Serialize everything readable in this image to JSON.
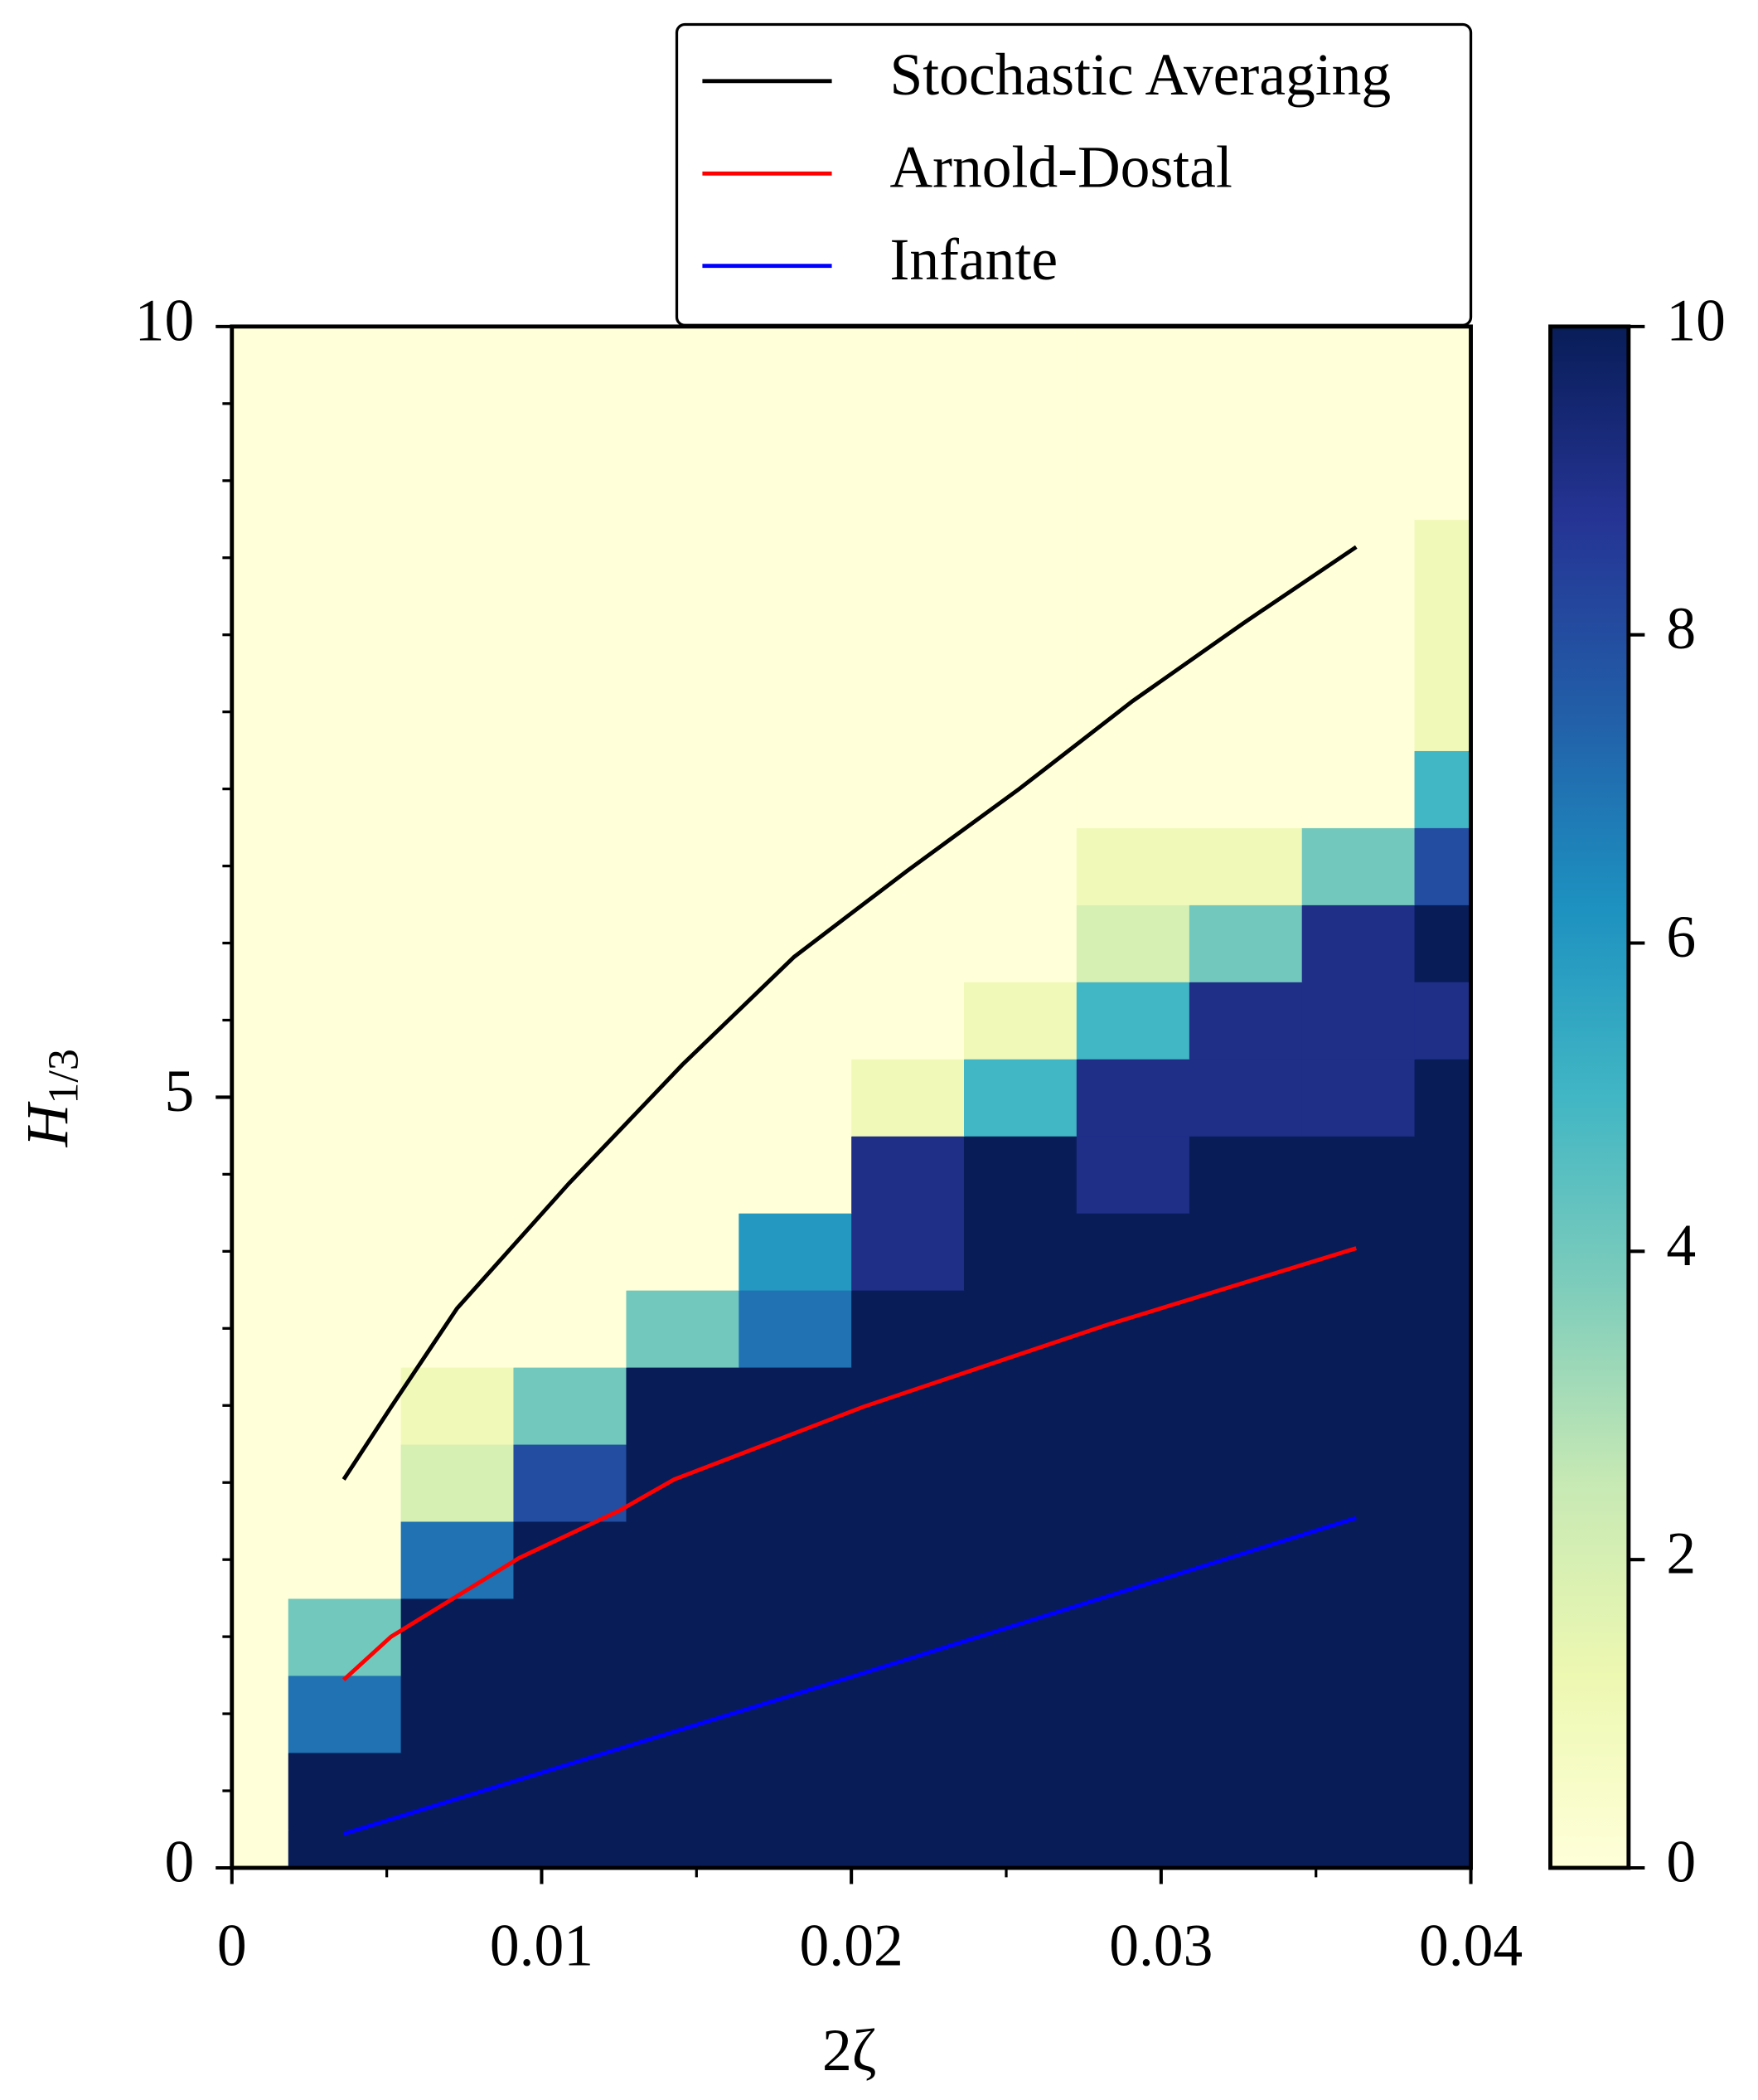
{
  "chart_data": {
    "type": "heatmap",
    "xlabel": "2ζ",
    "ylabel": "H",
    "ylabel_sub": "1/3",
    "xlim": [
      0,
      0.04
    ],
    "ylim": [
      0,
      10
    ],
    "xticks": [
      0,
      0.01,
      0.02,
      0.03,
      0.04
    ],
    "yticks": [
      0,
      5,
      10
    ],
    "xminorticks": [
      0.005,
      0.015,
      0.025,
      0.035
    ],
    "yminorticks": [
      0.5,
      1,
      1.5,
      2,
      2.5,
      3,
      3.5,
      4,
      4.5,
      5.5,
      6,
      6.5,
      7,
      7.5,
      8,
      8.5,
      9,
      9.5
    ],
    "xcenters": [
      0,
      0.00364,
      0.00727,
      0.01091,
      0.01455,
      0.01818,
      0.02182,
      0.02545,
      0.02909,
      0.03273,
      0.03636,
      0.04
    ],
    "ycenters": [
      0,
      0.5,
      1,
      1.5,
      2,
      2.5,
      3,
      3.5,
      4,
      4.5,
      5,
      5.5,
      6,
      6.5,
      7,
      7.5,
      8,
      8.5,
      9,
      9.5,
      10
    ],
    "z": [
      [
        0,
        10,
        10,
        10,
        10,
        10,
        10,
        10,
        10,
        10,
        10,
        10
      ],
      [
        0,
        10,
        10,
        10,
        10,
        10,
        10,
        10,
        10,
        10,
        10,
        10
      ],
      [
        0,
        7,
        10,
        10,
        10,
        10,
        10,
        10,
        10,
        10,
        10,
        10
      ],
      [
        0,
        4,
        10,
        10,
        10,
        10,
        10,
        10,
        10,
        10,
        10,
        10
      ],
      [
        0,
        0,
        7,
        10,
        10,
        10,
        10,
        10,
        10,
        10,
        10,
        10
      ],
      [
        0,
        0,
        2,
        8,
        10,
        10,
        10,
        10,
        10,
        10,
        10,
        10
      ],
      [
        0,
        0,
        1,
        4,
        10,
        10,
        10,
        10,
        10,
        10,
        10,
        10
      ],
      [
        0,
        0,
        0,
        0,
        4,
        7,
        10,
        10,
        10,
        10,
        10,
        10
      ],
      [
        0,
        0,
        0,
        0,
        0,
        6,
        9,
        10,
        10,
        10,
        10,
        10
      ],
      [
        0,
        0,
        0,
        0,
        0,
        0,
        9,
        10,
        9,
        10,
        10,
        10
      ],
      [
        0,
        0,
        0,
        0,
        0,
        0,
        1,
        5,
        9,
        9,
        9,
        10
      ],
      [
        0,
        0,
        0,
        0,
        0,
        0,
        0,
        1,
        5,
        9,
        9,
        9
      ],
      [
        0,
        0,
        0,
        0,
        0,
        0,
        0,
        0,
        2,
        4,
        9,
        10
      ],
      [
        0,
        0,
        0,
        0,
        0,
        0,
        0,
        0,
        1,
        1,
        4,
        8
      ],
      [
        0,
        0,
        0,
        0,
        0,
        0,
        0,
        0,
        0,
        0,
        0,
        5
      ],
      [
        0,
        0,
        0,
        0,
        0,
        0,
        0,
        0,
        0,
        0,
        0,
        1
      ],
      [
        0,
        0,
        0,
        0,
        0,
        0,
        0,
        0,
        0,
        0,
        0,
        1
      ],
      [
        0,
        0,
        0,
        0,
        0,
        0,
        0,
        0,
        0,
        0,
        0,
        1
      ],
      [
        0,
        0,
        0,
        0,
        0,
        0,
        0,
        0,
        0,
        0,
        0,
        0
      ],
      [
        0,
        0,
        0,
        0,
        0,
        0,
        0,
        0,
        0,
        0,
        0,
        0
      ],
      [
        0,
        0,
        0,
        0,
        0,
        0,
        0,
        0,
        0,
        0,
        0,
        0
      ]
    ],
    "colormap": [
      "#ffffd9",
      "#edf8b1",
      "#c7e9b4",
      "#7fcdbb",
      "#41b6c4",
      "#1d91c0",
      "#225ea8",
      "#253494",
      "#081d58"
    ],
    "clim": [
      0,
      10
    ],
    "cbar_ticks": [
      0,
      2,
      4,
      6,
      8,
      10
    ],
    "series": [
      {
        "name": "Stochastic Averaging",
        "color": "#000000",
        "x": [
          0.00361,
          0.00514,
          0.00727,
          0.01088,
          0.01454,
          0.01815,
          0.02181,
          0.02542,
          0.02908,
          0.03269,
          0.0363
        ],
        "values": [
          2.52,
          2.99,
          3.63,
          4.44,
          5.21,
          5.91,
          6.47,
          7.0,
          7.57,
          8.08,
          8.57
        ]
      },
      {
        "name": "Arnold-Dostal",
        "color": "#ff0000",
        "x": [
          0.00361,
          0.00514,
          0.00927,
          0.01253,
          0.01428,
          0.02037,
          0.02821,
          0.0363
        ],
        "values": [
          1.22,
          1.5,
          2.01,
          2.32,
          2.52,
          2.99,
          3.52,
          4.02
        ]
      },
      {
        "name": "Infante",
        "color": "#0000ff",
        "x": [
          0.00361,
          0.02002,
          0.0363
        ],
        "values": [
          0.22,
          1.24,
          2.27
        ]
      }
    ]
  }
}
